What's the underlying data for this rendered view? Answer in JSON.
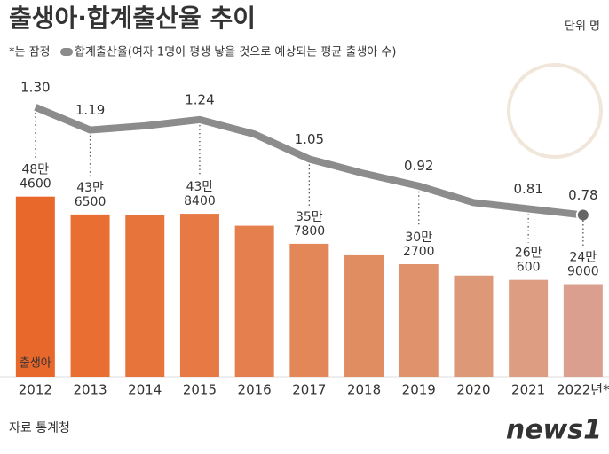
{
  "chart_data": {
    "type": "bar-line",
    "title": "출생아·합계출산율 추이",
    "unit": "단위 명",
    "note": "*는 잠정",
    "source": "자료 통계청",
    "logo": "news1",
    "categories": [
      "2012",
      "2013",
      "2014",
      "2015",
      "2016",
      "2017",
      "2018",
      "2019",
      "2020",
      "2021",
      "2022년*"
    ],
    "ylim": [
      0,
      870000
    ],
    "y2lim": [
      0,
      1.56
    ],
    "series": [
      {
        "name": "출생아",
        "type": "bar",
        "colors": [
          "#e8672a",
          "#e86e32",
          "#e7743b",
          "#e77a44",
          "#e5804e",
          "#e38758",
          "#e18d62",
          "#df926c",
          "#dd9877",
          "#dc9d82",
          "#da9f8e"
        ],
        "values": [
          484600,
          436500,
          435400,
          438400,
          406200,
          357800,
          326800,
          302700,
          272300,
          260600,
          249000
        ],
        "value_labels": [
          "48만 4600",
          "43만 6500",
          null,
          "43만 8400",
          null,
          "35만 7800",
          null,
          "30만 2700",
          null,
          "26만 600",
          "24만 9000"
        ]
      },
      {
        "name": "합계출산율(여자 1명이 평생 낳을 것으로 예상되는 평균 출생아 수)",
        "type": "line",
        "axis": "y2",
        "color": "#8c8c8c",
        "values": [
          1.3,
          1.19,
          1.21,
          1.24,
          1.17,
          1.05,
          0.98,
          0.92,
          0.84,
          0.81,
          0.78
        ],
        "value_labels": [
          "1.30",
          "1.19",
          null,
          "1.24",
          null,
          "1.05",
          null,
          "0.92",
          null,
          "0.81",
          "0.78"
        ]
      }
    ]
  }
}
